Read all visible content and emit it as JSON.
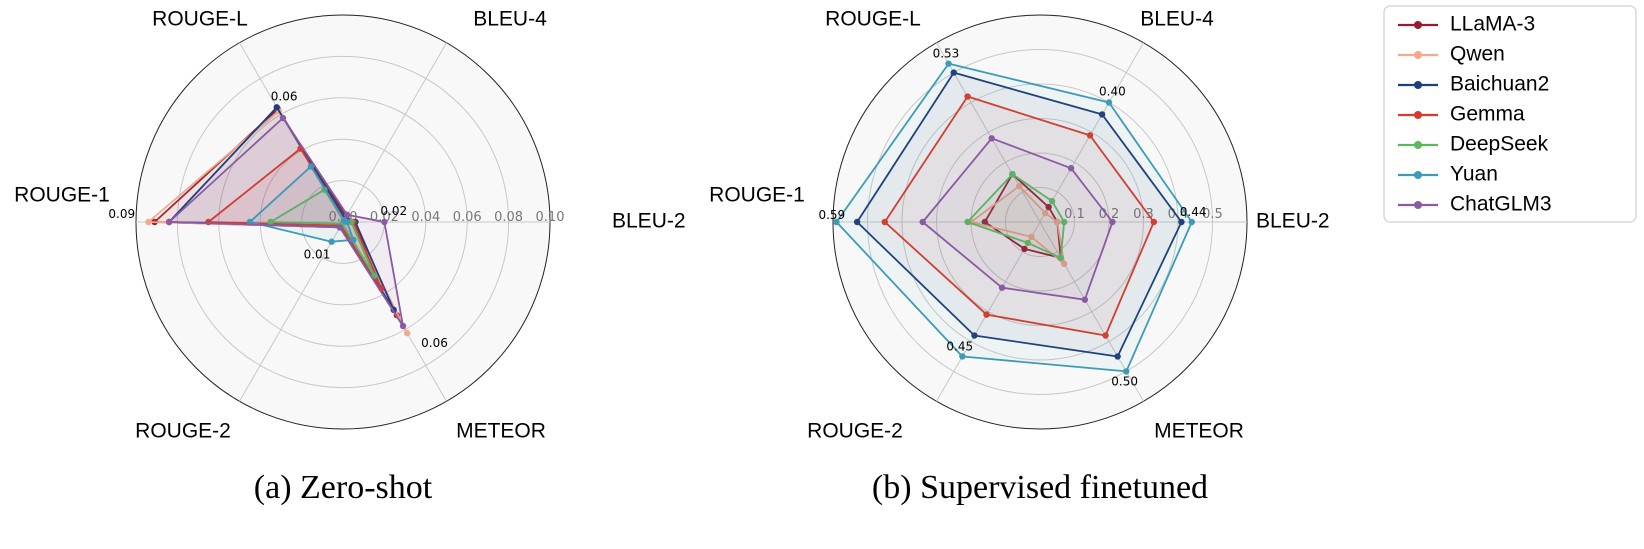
{
  "chart_data": [
    {
      "type": "radar",
      "caption": "(a) Zero-shot",
      "axes": [
        "BLEU-2",
        "BLEU-4",
        "ROUGE-L",
        "ROUGE-1",
        "ROUGE-2",
        "METEOR"
      ],
      "rlim": [
        0,
        0.1
      ],
      "ticks": [
        0.0,
        0.02,
        0.04,
        0.06,
        0.08,
        0.1
      ],
      "tick_labels": [
        "0.00",
        "0.02",
        "0.04",
        "0.06",
        "0.08",
        "0.10"
      ],
      "grid": true,
      "series": [
        {
          "name": "LLaMA-3",
          "values": [
            0.005,
            0.003,
            0.063,
            0.091,
            0.003,
            0.052
          ]
        },
        {
          "name": "Qwen",
          "values": [
            0.004,
            0.002,
            0.062,
            0.094,
            0.003,
            0.062
          ]
        },
        {
          "name": "Baichuan2",
          "values": [
            0.006,
            0.002,
            0.064,
            0.084,
            0.002,
            0.049
          ]
        },
        {
          "name": "Gemma",
          "values": [
            0.005,
            0.001,
            0.041,
            0.065,
            0.002,
            0.037
          ]
        },
        {
          "name": "DeepSeek",
          "values": [
            0.004,
            0.001,
            0.018,
            0.035,
            0.001,
            0.03
          ]
        },
        {
          "name": "Yuan",
          "values": [
            0.002,
            0.001,
            0.031,
            0.045,
            0.011,
            0.01
          ]
        },
        {
          "name": "ChatGLM3",
          "values": [
            0.02,
            0.004,
            0.058,
            0.084,
            0.003,
            0.058
          ]
        }
      ],
      "annotations": [
        {
          "axis": "BLEU-2",
          "text": "0.02"
        },
        {
          "axis": "ROUGE-L",
          "text": "0.06"
        },
        {
          "axis": "ROUGE-1",
          "text": "0.09"
        },
        {
          "axis": "ROUGE-2",
          "text": "0.01"
        },
        {
          "axis": "METEOR",
          "text": "0.06"
        }
      ]
    },
    {
      "type": "radar",
      "caption": "(b) Supervised finetuned",
      "axes": [
        "BLEU-2",
        "BLEU-4",
        "ROUGE-L",
        "ROUGE-1",
        "ROUGE-2",
        "METEOR"
      ],
      "rlim": [
        0,
        0.6
      ],
      "ticks": [
        0.1,
        0.2,
        0.3,
        0.4,
        0.5
      ],
      "tick_labels": [
        "0.1",
        "0.2",
        "0.3",
        "0.4",
        "0.5"
      ],
      "grid": true,
      "series": [
        {
          "name": "LLaMA-3",
          "values": [
            0.05,
            0.05,
            0.16,
            0.16,
            0.09,
            0.12
          ]
        },
        {
          "name": "Qwen",
          "values": [
            0.05,
            0.03,
            0.12,
            0.2,
            0.05,
            0.14
          ]
        },
        {
          "name": "Baichuan2",
          "values": [
            0.41,
            0.36,
            0.5,
            0.53,
            0.38,
            0.45
          ]
        },
        {
          "name": "Gemma",
          "values": [
            0.33,
            0.29,
            0.42,
            0.45,
            0.31,
            0.38
          ]
        },
        {
          "name": "DeepSeek",
          "values": [
            0.07,
            0.07,
            0.16,
            0.21,
            0.07,
            0.12
          ]
        },
        {
          "name": "Yuan",
          "values": [
            0.44,
            0.4,
            0.53,
            0.59,
            0.45,
            0.5
          ]
        },
        {
          "name": "ChatGLM3",
          "values": [
            0.21,
            0.18,
            0.28,
            0.34,
            0.22,
            0.26
          ]
        }
      ],
      "annotations": [
        {
          "axis": "BLEU-2",
          "text": "0.44"
        },
        {
          "axis": "BLEU-4",
          "text": "0.40"
        },
        {
          "axis": "ROUGE-L",
          "text": "0.53"
        },
        {
          "axis": "ROUGE-1",
          "text": "0.59"
        },
        {
          "axis": "ROUGE-2",
          "text": "0.45"
        },
        {
          "axis": "METEOR",
          "text": "0.50"
        }
      ]
    }
  ],
  "legend": {
    "placement": "top-right",
    "entries": [
      {
        "name": "LLaMA-3",
        "color": "#9b1b2e"
      },
      {
        "name": "Qwen",
        "color": "#f2a98e"
      },
      {
        "name": "Baichuan2",
        "color": "#1f3f7a"
      },
      {
        "name": "Gemma",
        "color": "#d93a2b"
      },
      {
        "name": "DeepSeek",
        "color": "#5cb85c"
      },
      {
        "name": "Yuan",
        "color": "#3c9cb8"
      },
      {
        "name": "ChatGLM3",
        "color": "#8a5aa3"
      }
    ]
  }
}
